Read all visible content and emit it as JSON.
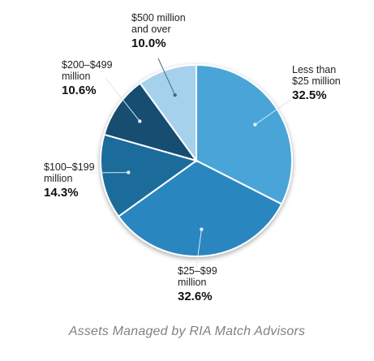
{
  "chart_data": {
    "type": "pie",
    "caption": "Assets Managed by RIA Match Advisors",
    "slices": [
      {
        "label_lines": [
          "Less than",
          "$25 million"
        ],
        "value": 32.5,
        "value_label": "32.5%",
        "color": "#4aa5d8"
      },
      {
        "label_lines": [
          "$25–$99",
          "million"
        ],
        "value": 32.6,
        "value_label": "32.6%",
        "color": "#2a86bf"
      },
      {
        "label_lines": [
          "$100–$199",
          "million"
        ],
        "value": 14.3,
        "value_label": "14.3%",
        "color": "#1f6c9b"
      },
      {
        "label_lines": [
          "$200–$499",
          "million"
        ],
        "value": 10.6,
        "value_label": "10.6%",
        "color": "#174e6f"
      },
      {
        "label_lines": [
          "$500 million",
          "and over"
        ],
        "value": 10.0,
        "value_label": "10.0%",
        "color": "#a5d1ec"
      }
    ]
  }
}
